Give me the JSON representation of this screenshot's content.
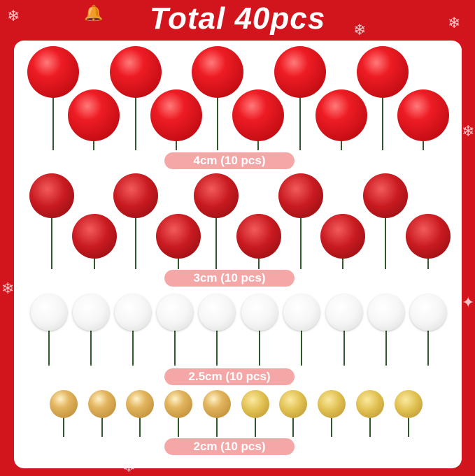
{
  "title": "Total 40pcs",
  "rows": [
    {
      "label": "4cm (10 pcs)",
      "color": "#e0141c",
      "finish": "pearl"
    },
    {
      "label": "3cm (10 pcs)",
      "color": "#c81a20",
      "finish": "glitter"
    },
    {
      "label": "2.5cm (10 pcs)",
      "color": "#ffffff",
      "finish": "pearl"
    },
    {
      "label": "2cm (10 pcs)",
      "color": "#d9a94e",
      "finish": "pearl / glitter"
    }
  ],
  "colors": {
    "background": "#d2141c",
    "label_pill": "#f5a7a8",
    "stem": "#2f5a2a"
  }
}
